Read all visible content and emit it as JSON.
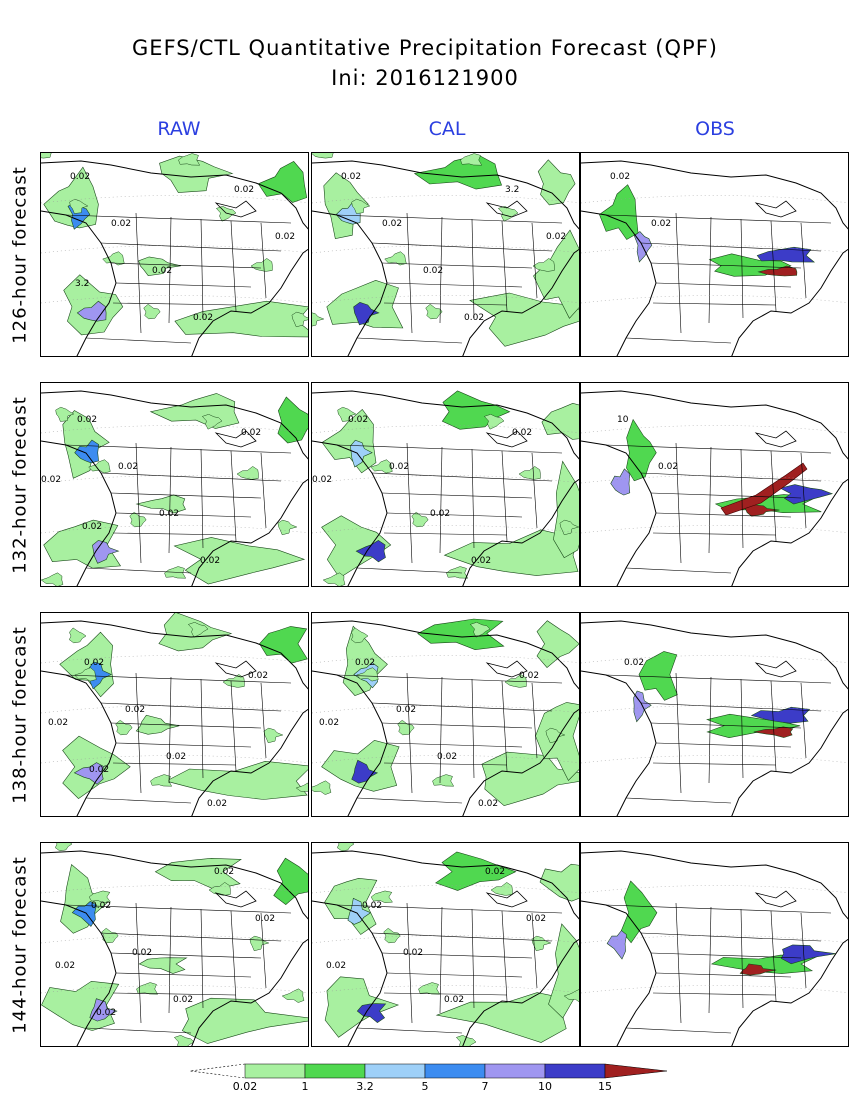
{
  "title": {
    "line1": "GEFS/CTL Quantitative Precipitation Forecast (QPF)",
    "line2": "Ini: 2016121900"
  },
  "columns": [
    "RAW",
    "CAL",
    "OBS"
  ],
  "rows": [
    {
      "label": "126-hour forecast",
      "labels": [
        [
          "0.02",
          "0.02",
          "0.02",
          "0.02",
          "0.02",
          "0.02",
          "3.2"
        ],
        [
          "0.02",
          "0.02",
          "0.02",
          "0.02",
          "3.2",
          "0.02"
        ],
        [
          "0.02",
          "0.02"
        ]
      ]
    },
    {
      "label": "132-hour forecast",
      "labels": [
        [
          "0.02",
          "0.02",
          "0.02",
          "0.02",
          "0.02",
          "0.02",
          "0.02"
        ],
        [
          "0.02",
          "0.02",
          "0.02",
          "0.02",
          "0.02",
          "0.02"
        ],
        [
          "10",
          "0.02"
        ]
      ]
    },
    {
      "label": "138-hour forecast",
      "labels": [
        [
          "0.02",
          "0.02",
          "0.02",
          "0.02",
          "0.02",
          "0.02",
          "0.02"
        ],
        [
          "0.02",
          "0.02",
          "0.02",
          "0.02",
          "0.02",
          "0.02"
        ],
        [
          "0.02"
        ]
      ]
    },
    {
      "label": "144-hour forecast",
      "labels": [
        [
          "0.02",
          "0.02",
          "0.02",
          "0.02",
          "0.02",
          "0.02",
          "0.02"
        ],
        [
          "0.02",
          "0.02",
          "0.02",
          "0.02",
          "0.02",
          "0.02"
        ],
        []
      ]
    }
  ],
  "legend": {
    "ticks": [
      "0.02",
      "1",
      "3.2",
      "5",
      "7",
      "10",
      "15"
    ],
    "colors": [
      "#a8f0a0",
      "#50d850",
      "#9ed0f8",
      "#3c8cf0",
      "#9f96f0",
      "#3c3cc8",
      "#a02020"
    ]
  }
}
